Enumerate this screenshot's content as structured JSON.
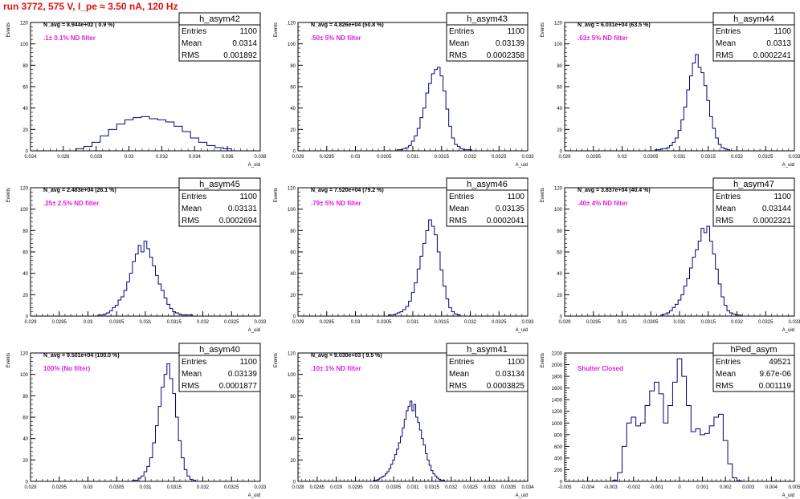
{
  "header": {
    "run_label": "run 3772,   575 V, I_pe ≈ 3.50 nA, 120 Hz"
  },
  "colors": {
    "histogram": "#000080",
    "annotation": "#e020e0",
    "header": "#e01010"
  },
  "chart_data": [
    {
      "type": "histogram",
      "name": "h_asym42",
      "navg": "N_avg = 8.944e+02 ( 0.9 %)",
      "filter": ".1± 0.1% ND filter",
      "stats": [
        [
          "Entries",
          "1100"
        ],
        [
          "Mean",
          "0.0314"
        ],
        [
          "RMS",
          "0.001892"
        ]
      ],
      "ylabel": "Events",
      "xlabel": "A_uid",
      "xlim": [
        0.024,
        0.038
      ],
      "ylim": [
        0,
        120
      ],
      "xticks": [
        "0.024",
        "0.026",
        "0.028",
        "0.03",
        "0.032",
        "0.034",
        "0.036",
        "0.038"
      ],
      "yticks": [
        "0",
        "20",
        "40",
        "60",
        "80",
        "100",
        "120"
      ],
      "x": [
        0.027,
        0.0275,
        0.028,
        0.0285,
        0.029,
        0.0295,
        0.03,
        0.0305,
        0.031,
        0.0315,
        0.032,
        0.0325,
        0.033,
        0.0335,
        0.034,
        0.0345,
        0.035,
        0.0355,
        0.036
      ],
      "values": [
        2,
        4,
        8,
        14,
        20,
        25,
        29,
        31,
        32,
        30,
        29,
        27,
        23,
        18,
        12,
        8,
        5,
        3,
        2
      ]
    },
    {
      "type": "histogram",
      "name": "h_asym43",
      "navg": "N_avg = 4.826e+04 (50.8 %)",
      "filter": ".50± 5% ND filter",
      "stats": [
        [
          "Entries",
          "1100"
        ],
        [
          "Mean",
          "0.03139"
        ],
        [
          "RMS",
          "0.0002358"
        ]
      ],
      "ylabel": "Events",
      "xlabel": "A_uid",
      "xlim": [
        0.029,
        0.033
      ],
      "ylim": [
        0,
        120
      ],
      "xticks": [
        "0.029",
        "0.0295",
        "0.03",
        "0.0305",
        "0.031",
        "0.0315",
        "0.032",
        "0.0325",
        "0.033"
      ],
      "yticks": [
        "0",
        "20",
        "40",
        "60",
        "80",
        "100",
        "120"
      ],
      "x": [
        0.03075,
        0.0308,
        0.03085,
        0.0309,
        0.03095,
        0.031,
        0.03105,
        0.0311,
        0.03115,
        0.0312,
        0.03125,
        0.0313,
        0.03135,
        0.0314,
        0.03145,
        0.0315,
        0.03155,
        0.0316,
        0.03165,
        0.0317,
        0.03175,
        0.0318,
        0.03185,
        0.0319,
        0.03195,
        0.032
      ],
      "values": [
        1,
        1,
        2,
        3,
        5,
        9,
        14,
        21,
        31,
        40,
        54,
        63,
        72,
        76,
        78,
        70,
        56,
        39,
        23,
        12,
        6,
        4,
        2,
        1,
        1,
        1
      ]
    },
    {
      "type": "histogram",
      "name": "h_asym44",
      "navg": "N_avg = 6.031e+04 (63.5 %)",
      "filter": ".63± 5% ND filter",
      "stats": [
        [
          "Entries",
          "1100"
        ],
        [
          "Mean",
          "0.0313"
        ],
        [
          "RMS",
          "0.0002241"
        ]
      ],
      "ylabel": "Events",
      "xlabel": "A_uid",
      "xlim": [
        0.029,
        0.033
      ],
      "ylim": [
        0,
        120
      ],
      "xticks": [
        "0.029",
        "0.0295",
        "0.03",
        "0.0305",
        "0.031",
        "0.0315",
        "0.032",
        "0.0325",
        "0.033"
      ],
      "yticks": [
        "0",
        "20",
        "40",
        "60",
        "80",
        "100",
        "120"
      ],
      "x": [
        0.0306,
        0.03065,
        0.0307,
        0.03075,
        0.0308,
        0.03085,
        0.0309,
        0.03095,
        0.031,
        0.03105,
        0.0311,
        0.03115,
        0.0312,
        0.03125,
        0.0313,
        0.03135,
        0.0314,
        0.03145,
        0.0315,
        0.03155,
        0.0316,
        0.03165,
        0.0317,
        0.03175,
        0.0318,
        0.03185
      ],
      "values": [
        1,
        1,
        2,
        2,
        3,
        5,
        8,
        12,
        19,
        29,
        41,
        57,
        70,
        82,
        90,
        78,
        73,
        61,
        47,
        32,
        21,
        12,
        6,
        3,
        2,
        1
      ]
    },
    {
      "type": "histogram",
      "name": "h_asym45",
      "navg": "N_avg = 2.483e+04 (26.1 %)",
      "filter": ".25± 2.5% ND filter",
      "stats": [
        [
          "Entries",
          "1100"
        ],
        [
          "Mean",
          "0.03131"
        ],
        [
          "RMS",
          "0.0002694"
        ]
      ],
      "ylabel": "Events",
      "xlabel": "A_uid",
      "xlim": [
        0.029,
        0.033
      ],
      "ylim": [
        0,
        120
      ],
      "xticks": [
        "0.029",
        "0.0295",
        "0.03",
        "0.0305",
        "0.031",
        "0.0315",
        "0.032",
        "0.0325",
        "0.033"
      ],
      "yticks": [
        "0",
        "20",
        "40",
        "60",
        "80",
        "100",
        "120"
      ],
      "x": [
        0.0302,
        0.03025,
        0.0303,
        0.03035,
        0.0304,
        0.03045,
        0.0305,
        0.03055,
        0.0306,
        0.03065,
        0.0307,
        0.03075,
        0.0308,
        0.03085,
        0.0309,
        0.03095,
        0.031,
        0.03105,
        0.0311,
        0.03115,
        0.0312,
        0.03125,
        0.0313,
        0.03135,
        0.0314,
        0.03145,
        0.0315,
        0.03155,
        0.0316,
        0.03165,
        0.0317,
        0.03175,
        0.0318
      ],
      "values": [
        1,
        1,
        2,
        3,
        5,
        8,
        10,
        15,
        18,
        24,
        32,
        40,
        51,
        58,
        66,
        60,
        70,
        63,
        55,
        47,
        38,
        30,
        24,
        17,
        11,
        7,
        4,
        3,
        2,
        1,
        1,
        1,
        1
      ]
    },
    {
      "type": "histogram",
      "name": "h_asym46",
      "navg": "N_avg = 7.520e+04 (79.2 %)",
      "filter": ".79± 5% ND filter",
      "stats": [
        [
          "Entries",
          "1100"
        ],
        [
          "Mean",
          "0.03135"
        ],
        [
          "RMS",
          "0.0002041"
        ]
      ],
      "ylabel": "Events",
      "xlabel": "A_uid",
      "xlim": [
        0.029,
        0.033
      ],
      "ylim": [
        0,
        120
      ],
      "xticks": [
        "0.029",
        "0.0295",
        "0.03",
        "0.0305",
        "0.031",
        "0.0315",
        "0.032",
        "0.0325",
        "0.033"
      ],
      "yticks": [
        "0",
        "20",
        "40",
        "60",
        "80",
        "100",
        "120"
      ],
      "x": [
        0.0306,
        0.03065,
        0.0307,
        0.03075,
        0.0308,
        0.03085,
        0.0309,
        0.03095,
        0.031,
        0.03105,
        0.0311,
        0.03115,
        0.0312,
        0.03125,
        0.0313,
        0.03135,
        0.0314,
        0.03145,
        0.0315,
        0.03155,
        0.0316,
        0.03165,
        0.0317,
        0.03175,
        0.0318
      ],
      "values": [
        1,
        1,
        2,
        3,
        4,
        6,
        9,
        14,
        22,
        31,
        44,
        56,
        68,
        80,
        90,
        84,
        76,
        60,
        43,
        28,
        16,
        8,
        4,
        2,
        1
      ]
    },
    {
      "type": "histogram",
      "name": "h_asym47",
      "navg": "N_avg = 3.837e+04 (40.4 %)",
      "filter": ".40± 4% ND filter",
      "stats": [
        [
          "Entries",
          "1100"
        ],
        [
          "Mean",
          "0.03144"
        ],
        [
          "RMS",
          "0.0002321"
        ]
      ],
      "ylabel": "Events",
      "xlabel": "A_uid",
      "xlim": [
        0.029,
        0.033
      ],
      "ylim": [
        0,
        120
      ],
      "xticks": [
        "0.029",
        "0.0295",
        "0.03",
        "0.0305",
        "0.031",
        "0.0315",
        "0.032",
        "0.0325",
        "0.033"
      ],
      "yticks": [
        "0",
        "20",
        "40",
        "60",
        "80",
        "100",
        "120"
      ],
      "x": [
        0.0307,
        0.03075,
        0.0308,
        0.03085,
        0.0309,
        0.03095,
        0.031,
        0.03105,
        0.0311,
        0.03115,
        0.0312,
        0.03125,
        0.0313,
        0.03135,
        0.0314,
        0.03145,
        0.0315,
        0.03155,
        0.0316,
        0.03165,
        0.0317,
        0.03175,
        0.0318,
        0.03185,
        0.0319,
        0.03195,
        0.032,
        0.03205
      ],
      "values": [
        1,
        2,
        3,
        5,
        8,
        11,
        15,
        20,
        28,
        35,
        45,
        55,
        62,
        70,
        82,
        78,
        84,
        70,
        58,
        44,
        30,
        18,
        10,
        5,
        3,
        2,
        1,
        1
      ]
    },
    {
      "type": "histogram",
      "name": "h_asym40",
      "navg": "N_avg = 9.501e+04 (100.0 %)",
      "filter": "100% (No filter)",
      "stats": [
        [
          "Entries",
          "1100"
        ],
        [
          "Mean",
          "0.03139"
        ],
        [
          "RMS",
          "0.0001877"
        ]
      ],
      "ylabel": "Events",
      "xlabel": "A_uid",
      "xlim": [
        0.029,
        0.033
      ],
      "ylim": [
        0,
        120
      ],
      "xticks": [
        "0.029",
        "0.0295",
        "0.03",
        "0.0305",
        "0.031",
        "0.0315",
        "0.032",
        "0.0325",
        "0.033"
      ],
      "yticks": [
        "0",
        "20",
        "40",
        "60",
        "80",
        "100",
        "120"
      ],
      "x": [
        0.0308,
        0.03085,
        0.0309,
        0.03095,
        0.031,
        0.03105,
        0.0311,
        0.03115,
        0.0312,
        0.03125,
        0.0313,
        0.03135,
        0.0314,
        0.03145,
        0.0315,
        0.03155,
        0.0316,
        0.03165,
        0.0317,
        0.03175,
        0.0318,
        0.03185
      ],
      "values": [
        1,
        1,
        3,
        5,
        9,
        14,
        22,
        36,
        52,
        70,
        88,
        100,
        110,
        96,
        82,
        60,
        38,
        22,
        11,
        5,
        2,
        1
      ]
    },
    {
      "type": "histogram",
      "name": "h_asym41",
      "navg": "N_avg = 9.030e+03 ( 9.5 %)",
      "filter": ".10± 1% ND filter",
      "stats": [
        [
          "Entries",
          "1100"
        ],
        [
          "Mean",
          "0.03134"
        ],
        [
          "RMS",
          "0.0003825"
        ]
      ],
      "ylabel": "Events",
      "xlabel": "A_uid",
      "xlim": [
        0.028,
        0.034
      ],
      "ylim": [
        0,
        120
      ],
      "xticks": [
        "0.028",
        "0.0285",
        "0.029",
        "0.0295",
        "0.03",
        "0.0305",
        "0.031",
        "0.0315",
        "0.032",
        "0.0325",
        "0.033",
        "0.0335",
        "0.034"
      ],
      "yticks": [
        "0",
        "20",
        "40",
        "60",
        "80",
        "100",
        "120"
      ],
      "x": [
        0.03,
        0.03005,
        0.0301,
        0.03015,
        0.0302,
        0.03025,
        0.0303,
        0.03035,
        0.0304,
        0.03045,
        0.0305,
        0.03055,
        0.0306,
        0.03065,
        0.0307,
        0.03075,
        0.0308,
        0.03085,
        0.0309,
        0.03095,
        0.031,
        0.03105,
        0.0311,
        0.03115,
        0.0312,
        0.03125,
        0.0313,
        0.03135,
        0.0314,
        0.03145,
        0.0315,
        0.03155,
        0.0316,
        0.03165,
        0.0317,
        0.03175,
        0.0318
      ],
      "values": [
        1,
        1,
        2,
        3,
        4,
        5,
        7,
        9,
        12,
        16,
        20,
        25,
        30,
        36,
        42,
        50,
        58,
        66,
        70,
        75,
        66,
        72,
        60,
        55,
        48,
        40,
        34,
        26,
        20,
        15,
        10,
        7,
        5,
        3,
        2,
        1,
        1
      ]
    },
    {
      "type": "histogram",
      "name": "hPed_asym",
      "navg": "",
      "filter": "Shutter Closed",
      "stats": [
        [
          "Entries",
          "49521"
        ],
        [
          "Mean",
          "9.67e-06"
        ],
        [
          "RMS",
          "0.001119"
        ]
      ],
      "ylabel": "Events",
      "xlabel": "A_uid",
      "xlim": [
        -0.005,
        0.005
      ],
      "ylim": [
        0,
        2200
      ],
      "xticks": [
        "-0.005",
        "-0.004",
        "-0.003",
        "-0.002",
        "-0.001",
        "0",
        "0.001",
        "0.002",
        "0.003",
        "0.004",
        "0.005"
      ],
      "yticks": [
        "0",
        "200",
        "400",
        "600",
        "800",
        "1000",
        "1200",
        "1400",
        "1600",
        "1800",
        "2000",
        "2200"
      ],
      "x": [
        -0.0028,
        -0.0026,
        -0.0024,
        -0.0022,
        -0.002,
        -0.0018,
        -0.0016,
        -0.0014,
        -0.0012,
        -0.001,
        -0.0008,
        -0.0006,
        -0.0004,
        -0.0002,
        0.0,
        0.0002,
        0.0004,
        0.0006,
        0.0008,
        0.001,
        0.0012,
        0.0014,
        0.0016,
        0.0018,
        0.002,
        0.0022,
        0.0024,
        0.0026
      ],
      "values": [
        20,
        150,
        600,
        1000,
        1100,
        950,
        1000,
        1300,
        1550,
        1700,
        1500,
        1000,
        1300,
        1700,
        2100,
        1800,
        1300,
        850,
        900,
        800,
        820,
        950,
        1100,
        1150,
        700,
        300,
        60,
        10
      ]
    }
  ]
}
